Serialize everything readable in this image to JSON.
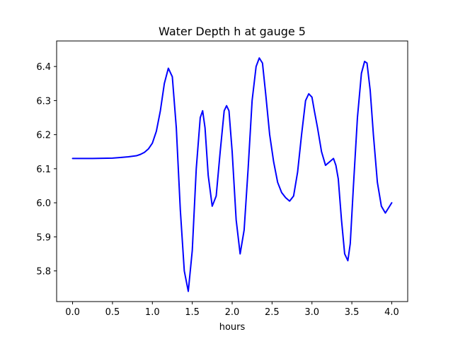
{
  "chart_data": {
    "type": "line",
    "title": "Water Depth h at gauge 5",
    "xlabel": "hours",
    "ylabel": "",
    "xlim": [
      -0.2,
      4.2
    ],
    "ylim": [
      5.71,
      6.475
    ],
    "xticks": [
      0.0,
      0.5,
      1.0,
      1.5,
      2.0,
      2.5,
      3.0,
      3.5,
      4.0
    ],
    "xtick_labels": [
      "0.0",
      "0.5",
      "1.0",
      "1.5",
      "2.0",
      "2.5",
      "3.0",
      "3.5",
      "4.0"
    ],
    "yticks": [
      5.8,
      5.9,
      6.0,
      6.1,
      6.2,
      6.3,
      6.4
    ],
    "ytick_labels": [
      "5.8",
      "5.9",
      "6.0",
      "6.1",
      "6.2",
      "6.3",
      "6.4"
    ],
    "grid": false,
    "series": [
      {
        "color": "#0000ff",
        "x": [
          0.0,
          0.25,
          0.5,
          0.6,
          0.7,
          0.8,
          0.85,
          0.9,
          0.95,
          1.0,
          1.05,
          1.1,
          1.15,
          1.2,
          1.25,
          1.3,
          1.35,
          1.4,
          1.45,
          1.5,
          1.55,
          1.6,
          1.63,
          1.66,
          1.7,
          1.75,
          1.8,
          1.85,
          1.9,
          1.93,
          1.96,
          2.0,
          2.05,
          2.1,
          2.15,
          2.2,
          2.25,
          2.3,
          2.34,
          2.38,
          2.42,
          2.47,
          2.52,
          2.57,
          2.62,
          2.67,
          2.72,
          2.77,
          2.82,
          2.87,
          2.92,
          2.96,
          3.0,
          3.03,
          3.07,
          3.12,
          3.17,
          3.22,
          3.27,
          3.3,
          3.33,
          3.37,
          3.41,
          3.45,
          3.48,
          3.52,
          3.57,
          3.62,
          3.66,
          3.69,
          3.73,
          3.77,
          3.82,
          3.87,
          3.92,
          3.96,
          4.0
        ],
        "y": [
          6.13,
          6.13,
          6.131,
          6.133,
          6.135,
          6.138,
          6.142,
          6.148,
          6.158,
          6.175,
          6.21,
          6.27,
          6.35,
          6.395,
          6.37,
          6.22,
          5.98,
          5.8,
          5.74,
          5.86,
          6.1,
          6.25,
          6.27,
          6.22,
          6.08,
          5.99,
          6.02,
          6.15,
          6.27,
          6.285,
          6.27,
          6.15,
          5.95,
          5.85,
          5.92,
          6.1,
          6.3,
          6.4,
          6.425,
          6.41,
          6.32,
          6.2,
          6.12,
          6.06,
          6.03,
          6.015,
          6.005,
          6.02,
          6.09,
          6.2,
          6.3,
          6.32,
          6.31,
          6.27,
          6.22,
          6.15,
          6.11,
          6.12,
          6.13,
          6.11,
          6.07,
          5.95,
          5.85,
          5.83,
          5.88,
          6.05,
          6.25,
          6.38,
          6.415,
          6.41,
          6.33,
          6.2,
          6.06,
          5.99,
          5.97,
          5.985,
          6.0
        ]
      }
    ]
  }
}
